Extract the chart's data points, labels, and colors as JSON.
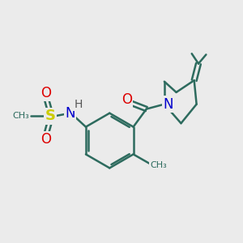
{
  "background_color": "#ebebeb",
  "bond_color": "#2d6b5e",
  "bond_width": 1.8,
  "atom_colors": {
    "O": "#dd0000",
    "N": "#0000cc",
    "S": "#cccc00",
    "H": "#555555",
    "C": "#2d6b5e"
  },
  "figsize": [
    3.0,
    3.0
  ],
  "dpi": 100
}
